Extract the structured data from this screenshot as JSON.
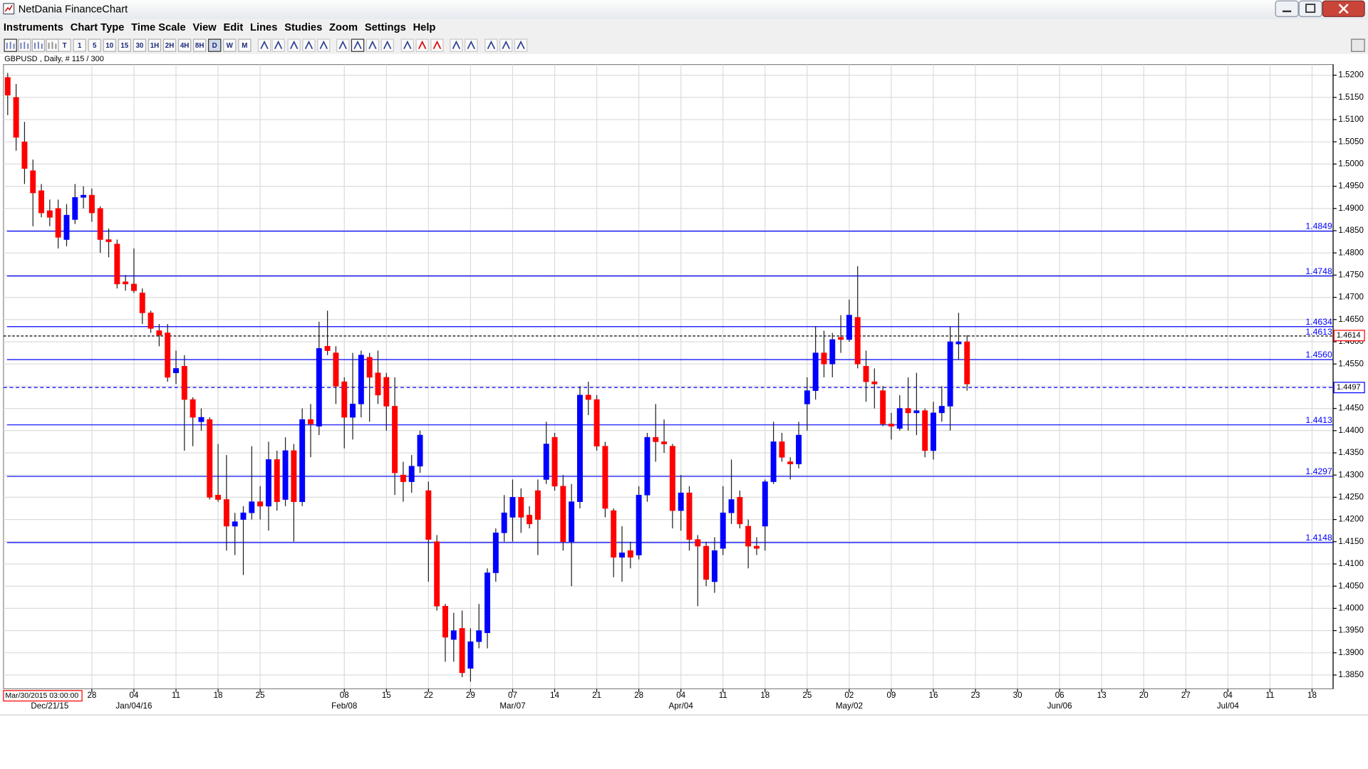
{
  "window": {
    "title": "NetDania FinanceChart"
  },
  "menu": [
    "Instruments",
    "Chart Type",
    "Time Scale",
    "View",
    "Edit",
    "Lines",
    "Studies",
    "Zoom",
    "Settings",
    "Help"
  ],
  "toolbar": [
    "T",
    "1",
    "5",
    "10",
    "15",
    "30",
    "1H",
    "2H",
    "4H",
    "8H",
    "D",
    "W",
    "M"
  ],
  "chart_data": {
    "type": "candlestick",
    "title": "GBPUSD , Daily, # 115 / 300",
    "up_color": "#0000ff",
    "down_color": "#ff0000",
    "open": [
      1.5195,
      1.515,
      1.505,
      1.4985,
      1.494,
      1.4895,
      1.49,
      1.483,
      1.4875,
      1.4925,
      1.493,
      1.49,
      1.483,
      1.482,
      1.4735,
      1.473,
      1.471,
      1.4665,
      1.4625,
      1.462,
      1.453,
      1.4545,
      1.447,
      1.442,
      1.4425,
      1.4255,
      1.4245,
      1.4185,
      1.42,
      1.4215,
      1.424,
      1.423,
      1.4335,
      1.4245,
      1.4355,
      1.424,
      1.4425,
      1.441,
      1.459,
      1.4575,
      1.451,
      1.443,
      1.446,
      1.4565,
      1.453,
      1.452,
      1.4455,
      1.43,
      1.4285,
      1.432,
      1.4265,
      1.415,
      1.4005,
      1.393,
      1.3955,
      1.3865,
      1.3925,
      1.3945,
      1.408,
      1.417,
      1.4205,
      1.425,
      1.421,
      1.4265,
      1.429,
      1.4385,
      1.4275,
      1.415,
      1.424,
      1.448,
      1.447,
      1.4365,
      1.422,
      1.4115,
      1.413,
      1.412,
      1.4255,
      1.4385,
      1.4375,
      1.4365,
      1.422,
      1.426,
      1.4155,
      1.414,
      1.406,
      1.4135,
      1.4215,
      1.425,
      1.4185,
      1.414,
      1.4185,
      1.4285,
      1.4375,
      1.433,
      1.4325,
      1.446,
      1.449,
      1.4575,
      1.455,
      1.461,
      1.4605,
      1.4655,
      1.4545,
      1.451,
      1.449,
      1.4415,
      1.4405,
      1.445,
      1.444,
      1.4445,
      1.4355,
      1.444,
      1.4455,
      1.4595,
      1.46
    ],
    "high": [
      1.5205,
      1.518,
      1.5095,
      1.501,
      1.4955,
      1.492,
      1.492,
      1.491,
      1.4955,
      1.495,
      1.4945,
      1.4905,
      1.4855,
      1.483,
      1.475,
      1.481,
      1.472,
      1.467,
      1.464,
      1.464,
      1.458,
      1.457,
      1.4475,
      1.445,
      1.443,
      1.437,
      1.4345,
      1.4215,
      1.423,
      1.4365,
      1.4275,
      1.4375,
      1.4355,
      1.4385,
      1.437,
      1.445,
      1.446,
      1.4645,
      1.467,
      1.459,
      1.452,
      1.4575,
      1.458,
      1.4575,
      1.458,
      1.453,
      1.452,
      1.433,
      1.4345,
      1.44,
      1.4285,
      1.4165,
      1.401,
      1.399,
      1.3995,
      1.3955,
      1.401,
      1.409,
      1.418,
      1.4255,
      1.429,
      1.427,
      1.423,
      1.429,
      1.442,
      1.4395,
      1.43,
      1.428,
      1.45,
      1.451,
      1.448,
      1.4375,
      1.4225,
      1.4185,
      1.415,
      1.4275,
      1.4395,
      1.446,
      1.4425,
      1.437,
      1.43,
      1.4275,
      1.4165,
      1.415,
      1.416,
      1.4275,
      1.4335,
      1.4265,
      1.42,
      1.416,
      1.429,
      1.442,
      1.4395,
      1.434,
      1.442,
      1.452,
      1.4635,
      1.4625,
      1.462,
      1.466,
      1.4695,
      1.477,
      1.458,
      1.454,
      1.45,
      1.444,
      1.448,
      1.452,
      1.453,
      1.445,
      1.4465,
      1.45,
      1.4635,
      1.4665,
      1.4615
    ],
    "low": [
      1.511,
      1.503,
      1.4955,
      1.486,
      1.488,
      1.486,
      1.481,
      1.4815,
      1.4865,
      1.49,
      1.487,
      1.48,
      1.479,
      1.472,
      1.4715,
      1.471,
      1.464,
      1.462,
      1.459,
      1.451,
      1.4505,
      1.4355,
      1.4365,
      1.44,
      1.4245,
      1.424,
      1.413,
      1.412,
      1.4075,
      1.42,
      1.42,
      1.4175,
      1.422,
      1.423,
      1.415,
      1.423,
      1.434,
      1.439,
      1.457,
      1.446,
      1.436,
      1.438,
      1.443,
      1.442,
      1.446,
      1.44,
      1.4255,
      1.424,
      1.426,
      1.4305,
      1.406,
      1.3995,
      1.388,
      1.388,
      1.3845,
      1.3835,
      1.391,
      1.391,
      1.406,
      1.415,
      1.415,
      1.417,
      1.418,
      1.412,
      1.428,
      1.4265,
      1.413,
      1.405,
      1.4225,
      1.4435,
      1.4355,
      1.4205,
      1.407,
      1.406,
      1.409,
      1.411,
      1.424,
      1.433,
      1.435,
      1.418,
      1.4175,
      1.413,
      1.4005,
      1.405,
      1.4035,
      1.412,
      1.419,
      1.418,
      1.409,
      1.412,
      1.413,
      1.428,
      1.433,
      1.429,
      1.4315,
      1.44,
      1.447,
      1.452,
      1.452,
      1.4575,
      1.46,
      1.454,
      1.4465,
      1.445,
      1.441,
      1.438,
      1.44,
      1.44,
      1.439,
      1.434,
      1.4335,
      1.442,
      1.44,
      1.456,
      1.449
    ],
    "close": [
      1.5155,
      1.506,
      1.499,
      1.4935,
      1.489,
      1.488,
      1.4835,
      1.4885,
      1.4925,
      1.493,
      1.489,
      1.483,
      1.4825,
      1.473,
      1.473,
      1.4715,
      1.4665,
      1.463,
      1.4615,
      1.452,
      1.454,
      1.447,
      1.443,
      1.443,
      1.425,
      1.4245,
      1.4185,
      1.4195,
      1.4215,
      1.424,
      1.423,
      1.4335,
      1.424,
      1.4355,
      1.424,
      1.4425,
      1.4415,
      1.4585,
      1.458,
      1.45,
      1.443,
      1.446,
      1.457,
      1.452,
      1.448,
      1.4455,
      1.4305,
      1.4285,
      1.432,
      1.439,
      1.4155,
      1.4005,
      1.3935,
      1.395,
      1.3855,
      1.3925,
      1.395,
      1.408,
      1.417,
      1.4215,
      1.425,
      1.4205,
      1.419,
      1.42,
      1.437,
      1.4275,
      1.415,
      1.424,
      1.448,
      1.447,
      1.4365,
      1.4225,
      1.4115,
      1.4125,
      1.4115,
      1.4255,
      1.4385,
      1.4375,
      1.437,
      1.422,
      1.426,
      1.4155,
      1.414,
      1.4065,
      1.413,
      1.4215,
      1.4245,
      1.419,
      1.414,
      1.4135,
      1.4285,
      1.4375,
      1.434,
      1.4325,
      1.439,
      1.449,
      1.4575,
      1.455,
      1.4605,
      1.4605,
      1.466,
      1.455,
      1.451,
      1.4505,
      1.4415,
      1.441,
      1.445,
      1.444,
      1.4445,
      1.4355,
      1.444,
      1.4455,
      1.46,
      1.46,
      1.4505
    ],
    "xlim": [
      -0.5,
      157.5
    ],
    "xticks": [
      {
        "value": 10,
        "label": "28"
      },
      {
        "value": 15,
        "label": "04"
      },
      {
        "value": 20,
        "label": "11"
      },
      {
        "value": 25,
        "label": "18"
      },
      {
        "value": 30,
        "label": "25"
      },
      {
        "value": 40,
        "label": "08"
      },
      {
        "value": 45,
        "label": "15"
      },
      {
        "value": 50,
        "label": "22"
      },
      {
        "value": 55,
        "label": "29"
      },
      {
        "value": 60,
        "label": "07"
      },
      {
        "value": 65,
        "label": "14"
      },
      {
        "value": 70,
        "label": "21"
      },
      {
        "value": 75,
        "label": "28"
      },
      {
        "value": 80,
        "label": "04"
      },
      {
        "value": 85,
        "label": "11"
      },
      {
        "value": 90,
        "label": "18"
      },
      {
        "value": 95,
        "label": "25"
      },
      {
        "value": 100,
        "label": "02"
      },
      {
        "value": 105,
        "label": "09"
      },
      {
        "value": 110,
        "label": "16"
      },
      {
        "value": 115,
        "label": "23"
      },
      {
        "value": 120,
        "label": "30"
      },
      {
        "value": 125,
        "label": "06"
      },
      {
        "value": 130,
        "label": "13"
      },
      {
        "value": 135,
        "label": "20"
      },
      {
        "value": 140,
        "label": "27"
      },
      {
        "value": 145,
        "label": "04"
      },
      {
        "value": 150,
        "label": "11"
      },
      {
        "value": 155,
        "label": "18"
      }
    ],
    "xticks_secondary": [
      {
        "value": 5,
        "label": "Dec/21/15"
      },
      {
        "value": 15,
        "label": "Jan/04/16"
      },
      {
        "value": 40,
        "label": "Feb/08"
      },
      {
        "value": 60,
        "label": "Mar/07"
      },
      {
        "value": 80,
        "label": "Apr/04"
      },
      {
        "value": 100,
        "label": "May/02"
      },
      {
        "value": 125,
        "label": "Jun/06"
      },
      {
        "value": 145,
        "label": "Jul/04"
      }
    ],
    "ylim": [
      1.3819,
      1.5224
    ],
    "yticks": [
      {
        "value": 1.385,
        "label": "1.3850"
      },
      {
        "value": 1.39,
        "label": "1.3900"
      },
      {
        "value": 1.395,
        "label": "1.3950"
      },
      {
        "value": 1.4,
        "label": "1.4000"
      },
      {
        "value": 1.405,
        "label": "1.4050"
      },
      {
        "value": 1.41,
        "label": "1.4100"
      },
      {
        "value": 1.415,
        "label": "1.4150"
      },
      {
        "value": 1.42,
        "label": "1.4200"
      },
      {
        "value": 1.425,
        "label": "1.4250"
      },
      {
        "value": 1.43,
        "label": "1.4300"
      },
      {
        "value": 1.435,
        "label": "1.4350"
      },
      {
        "value": 1.44,
        "label": "1.4400"
      },
      {
        "value": 1.445,
        "label": "1.4450"
      },
      {
        "value": 1.45,
        "label": "1.4500"
      },
      {
        "value": 1.455,
        "label": "1.4550"
      },
      {
        "value": 1.46,
        "label": "1.4600"
      },
      {
        "value": 1.465,
        "label": "1.4650"
      },
      {
        "value": 1.47,
        "label": "1.4700"
      },
      {
        "value": 1.475,
        "label": "1.4750"
      },
      {
        "value": 1.48,
        "label": "1.4800"
      },
      {
        "value": 1.485,
        "label": "1.4850"
      },
      {
        "value": 1.49,
        "label": "1.4900"
      },
      {
        "value": 1.495,
        "label": "1.4950"
      },
      {
        "value": 1.5,
        "label": "1.5000"
      },
      {
        "value": 1.505,
        "label": "1.5050"
      },
      {
        "value": 1.51,
        "label": "1.5100"
      },
      {
        "value": 1.515,
        "label": "1.5150"
      },
      {
        "value": 1.52,
        "label": "1.5200"
      }
    ],
    "grid": true,
    "level_color": "#0000ff",
    "levels": [
      {
        "value": 1.4849,
        "label": "1.4849"
      },
      {
        "value": 1.4748,
        "label": "1.4748"
      },
      {
        "value": 1.4634,
        "label": "1.4634"
      },
      {
        "value": 1.456,
        "label": "1.4560"
      },
      {
        "value": 1.4413,
        "label": "1.4413"
      },
      {
        "value": 1.4297,
        "label": "1.4297"
      },
      {
        "value": 1.4148,
        "label": "1.4148"
      }
    ],
    "reference_line": {
      "value": 1.4613,
      "label": "1.4613",
      "color": "#000000"
    },
    "bid_line": {
      "value": 1.4497,
      "label": "1.4497",
      "color": "#0000ff"
    },
    "last_price": {
      "value": 1.4614,
      "label": "1.4614",
      "color": "#ff0000"
    },
    "cursor_label": "Mar/30/2015 03:00:00"
  }
}
